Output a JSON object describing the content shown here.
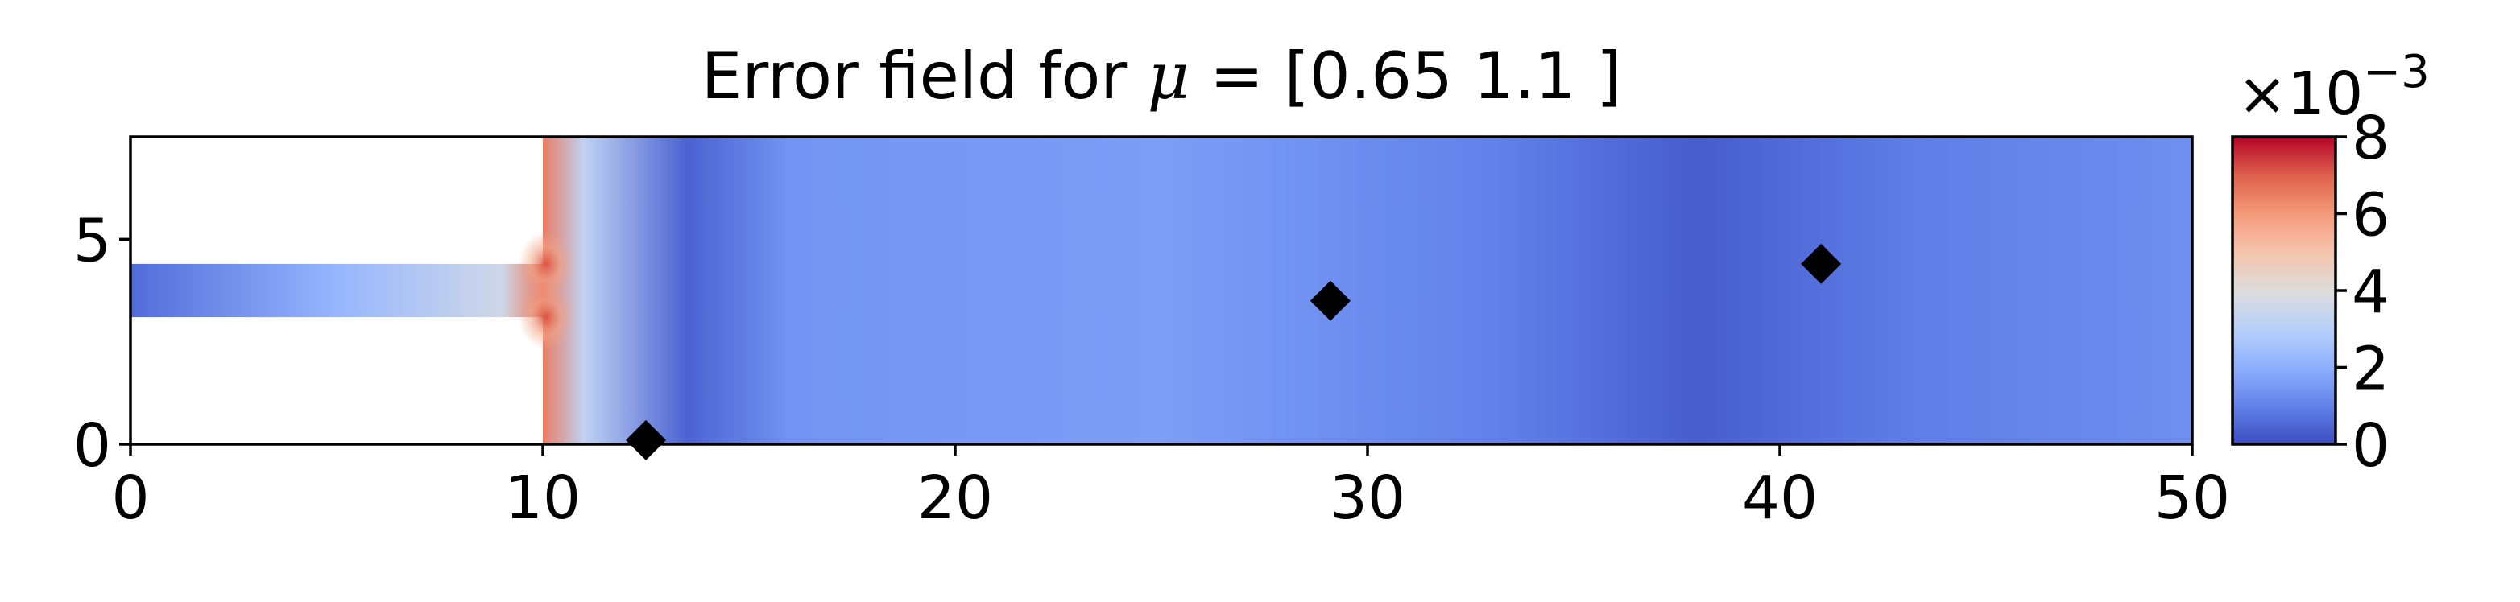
{
  "chart_data": {
    "type": "heatmap",
    "title": {
      "prefix": "Error field for ",
      "symbol": "μ",
      "suffix": " = [0.65 1.1 ]"
    },
    "xlabel": "",
    "ylabel": "",
    "xlim": [
      0,
      50
    ],
    "ylim": [
      0,
      7.5
    ],
    "x_ticks": [
      "0",
      "10",
      "20",
      "30",
      "40",
      "50"
    ],
    "y_ticks": [
      "0",
      "5"
    ],
    "domain": {
      "inlet_channel": {
        "x": [
          0,
          10
        ],
        "y": [
          3.1,
          4.4
        ]
      },
      "main_chamber": {
        "x": [
          10,
          50
        ],
        "y": [
          0,
          7.5
        ]
      }
    },
    "markers": [
      {
        "x": 12.5,
        "y": 0.1
      },
      {
        "x": 29.1,
        "y": 3.5
      },
      {
        "x": 41.0,
        "y": 4.4
      }
    ],
    "colorbar": {
      "colormap": "coolwarm",
      "range": [
        0,
        8
      ],
      "ticks": [
        "0",
        "2",
        "4",
        "6",
        "8"
      ],
      "scale_label": "×10",
      "scale_exponent": "−3"
    },
    "field_profile": [
      {
        "x": 0,
        "value": 0.6
      },
      {
        "x": 5,
        "value": 2.2
      },
      {
        "x": 9,
        "value": 3.6
      },
      {
        "x": 10,
        "value": 6.5
      },
      {
        "x": 11,
        "value": 3.2
      },
      {
        "x": 13.5,
        "value": 0.4
      },
      {
        "x": 16,
        "value": 1.4
      },
      {
        "x": 25,
        "value": 1.6
      },
      {
        "x": 33,
        "value": 1.0
      },
      {
        "x": 38,
        "value": 0.3
      },
      {
        "x": 43,
        "value": 0.9
      },
      {
        "x": 50,
        "value": 1.3
      }
    ],
    "colors": {
      "low": "#3b4cc0",
      "mid": "#dddcdb",
      "high": "#b40426",
      "marker": "#000000"
    }
  }
}
